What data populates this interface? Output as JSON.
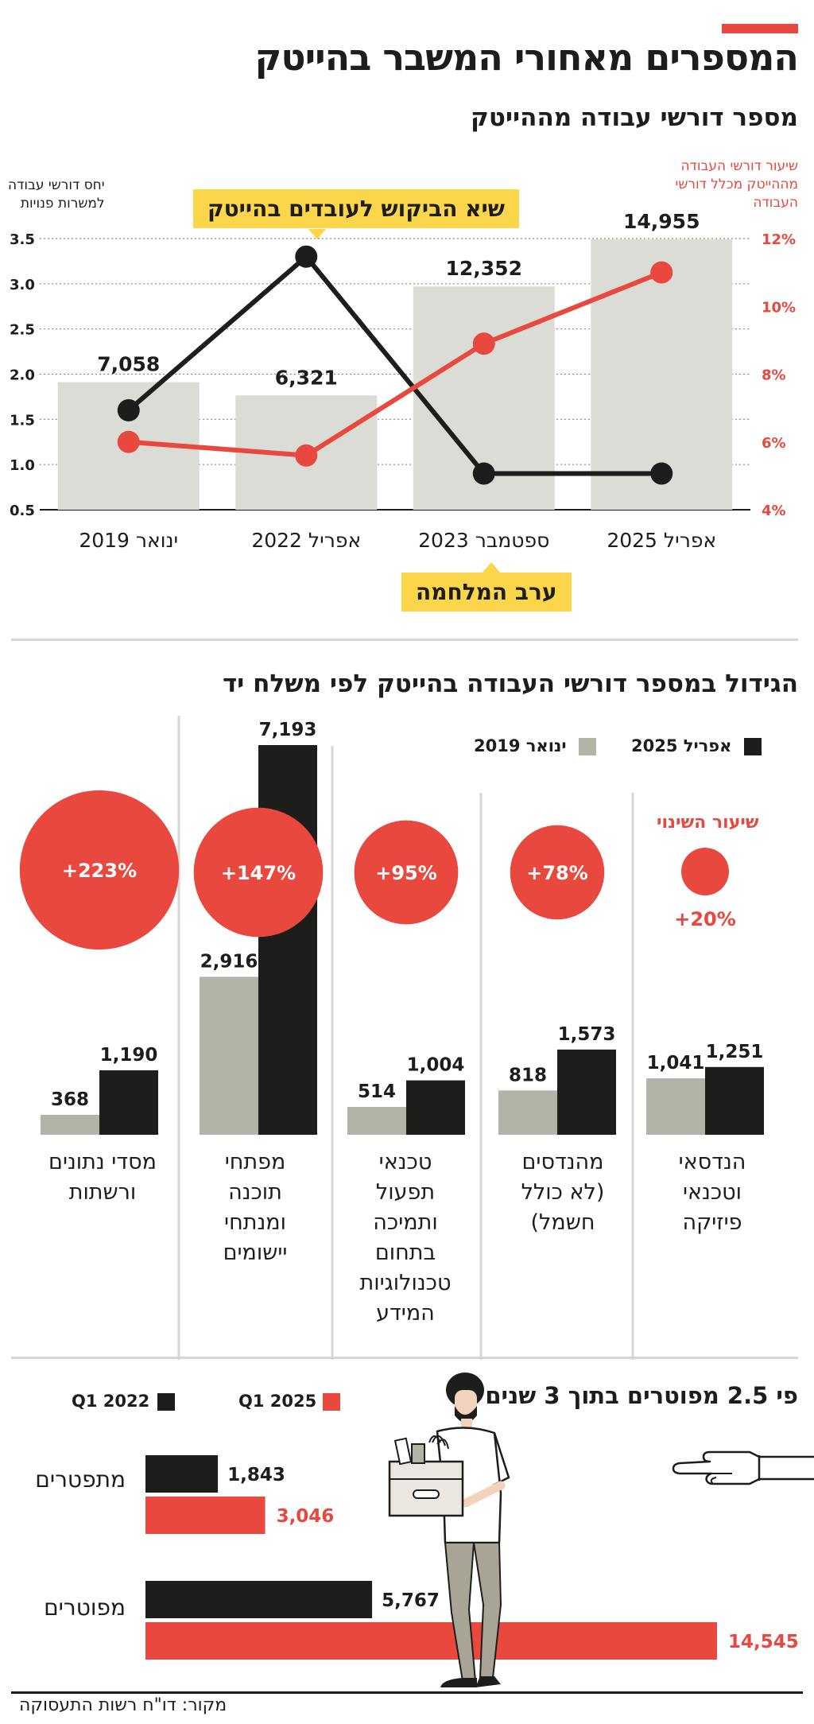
{
  "title": "המספרים מאחורי המשבר בהייטק",
  "colors": {
    "accent": "#e8483d",
    "black": "#1d1d1b",
    "gray_bar": "#dcdcd6",
    "gray_bar2": "#b4b3a8",
    "yellow": "#fbd64a"
  },
  "section1": {
    "title": "מספר דורשי עבודה מההייטק",
    "left_axis_label": [
      "יחס דורשי עבודה",
      "למשרות פנויות"
    ],
    "right_axis_label": [
      "שיעור דורשי העבודה",
      "מההייטק מכלל דורשי",
      "העבודה"
    ],
    "callout_peak": "שיא הביקוש לעובדים בהייטק",
    "callout_war": "ערב המלחמה"
  },
  "section2": {
    "title": "הגידול במספר דורשי העבודה בהייטק לפי משלח יד",
    "legend_2025": "אפריל 2025",
    "legend_2019": "ינואר 2019",
    "change_label": "שיעור השינוי"
  },
  "section3": {
    "title": "פי 2.5 מפוטרים בתוך 3 שנים",
    "legend_2025": "Q1 2025",
    "legend_2022": "Q1 2022"
  },
  "source": "מקור: דו\"ח רשות התעסוקה",
  "chart_data": [
    {
      "type": "bar",
      "title": "מספר דורשי עבודה מההייטק",
      "categories": [
        "ינואר 2019",
        "אפריל 2022",
        "ספטמבר 2023",
        "אפריל 2025"
      ],
      "bar_values": [
        7058,
        6321,
        12352,
        14955
      ],
      "bar_labels": [
        "7,058",
        "6,321",
        "12,352",
        "14,955"
      ],
      "line_series": [
        {
          "name": "יחס דורשי עבודה למשרות פנויות",
          "axis": "left",
          "values": [
            1.6,
            3.3,
            0.9,
            0.9
          ]
        },
        {
          "name": "שיעור דורשי העבודה מההייטק מכלל דורשי העבודה",
          "axis": "right",
          "values": [
            6.0,
            5.6,
            8.9,
            11.0
          ]
        }
      ],
      "left_ylim": [
        0.5,
        3.5
      ],
      "left_ticks": [
        "0.5",
        "1.0",
        "1.5",
        "2.0",
        "2.5",
        "3.0",
        "3.5"
      ],
      "right_ylim": [
        4,
        12
      ],
      "right_ticks": [
        "4%",
        "6%",
        "8%",
        "10%",
        "12%"
      ],
      "grid": true
    },
    {
      "type": "bar",
      "title": "הגידול במספר דורשי העבודה בהייטק לפי משלח יד",
      "categories": [
        [
          "הנדסאי",
          "וטכנאי",
          "פיזיקה"
        ],
        [
          "מהנדסים",
          "(לא כולל",
          "חשמל)"
        ],
        [
          "טכנאי",
          "תפעול",
          "ותמיכה",
          "בתחום",
          "טכנולוגיות",
          "המידע"
        ],
        [
          "מפתחי",
          "תוכנה",
          "ומנתחי",
          "יישומים"
        ],
        [
          "מסדי נתונים",
          "ורשתות"
        ]
      ],
      "series": [
        {
          "name": "אפריל 2025",
          "values": [
            1251,
            1573,
            1004,
            7193,
            1190
          ],
          "labels": [
            "1,251",
            "1,573",
            "1,004",
            "7,193",
            "1,190"
          ]
        },
        {
          "name": "ינואר 2019",
          "values": [
            1041,
            818,
            514,
            2916,
            368
          ],
          "labels": [
            "1,041",
            "818",
            "514",
            "2,916",
            "368"
          ]
        }
      ],
      "change": [
        20,
        78,
        95,
        147,
        223
      ],
      "change_labels": [
        "+20%",
        "+78%",
        "+95%",
        "+147%",
        "+223%"
      ],
      "legend": "top-right"
    },
    {
      "type": "bar",
      "orientation": "horizontal",
      "title": "פי 2.5 מפוטרים בתוך 3 שנים",
      "categories": [
        "מתפטרים",
        "מפוטרים"
      ],
      "series": [
        {
          "name": "Q1 2022",
          "values": [
            1843,
            5767
          ],
          "labels": [
            "1,843",
            "5,767"
          ]
        },
        {
          "name": "Q1 2025",
          "values": [
            3046,
            14545
          ],
          "labels": [
            "3,046",
            "14,545"
          ]
        }
      ],
      "legend": "top-left"
    }
  ]
}
